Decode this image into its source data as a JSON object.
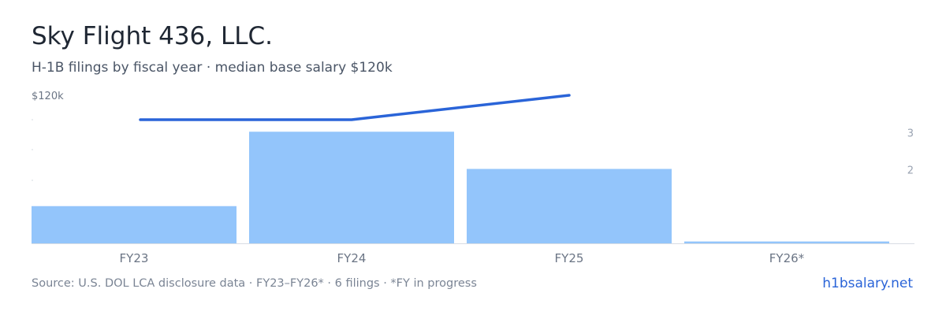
{
  "header": {
    "title": "Sky Flight 436, LLC.",
    "subtitle": "H-1B filings by fiscal year · median base salary $120k"
  },
  "footer": {
    "source": "Source: U.S. DOL LCA disclosure data · FY23–FY26* · 6 filings · *FY in progress",
    "brand": "h1bsalary.net"
  },
  "colors": {
    "bar": "#93c5fb",
    "line": "#2a64d8",
    "axis": "#d8dde4",
    "tick": "#6b7585",
    "right_tick": "#9aa3b2"
  },
  "chart_data": {
    "type": "bar",
    "categories": [
      "FY23",
      "FY24",
      "FY25",
      "FY26*"
    ],
    "series": [
      {
        "type": "bar",
        "axis": "right",
        "values": [
          1,
          3,
          2,
          0.05
        ]
      },
      {
        "type": "line",
        "axis": "left",
        "values": [
          120,
          120,
          120,
          null
        ]
      }
    ],
    "left_axis": {
      "ticks": [
        "$120k"
      ]
    },
    "right_axis": {
      "ticks": [
        "3",
        "2"
      ],
      "ylim": [
        0,
        4
      ]
    },
    "grid": false
  }
}
